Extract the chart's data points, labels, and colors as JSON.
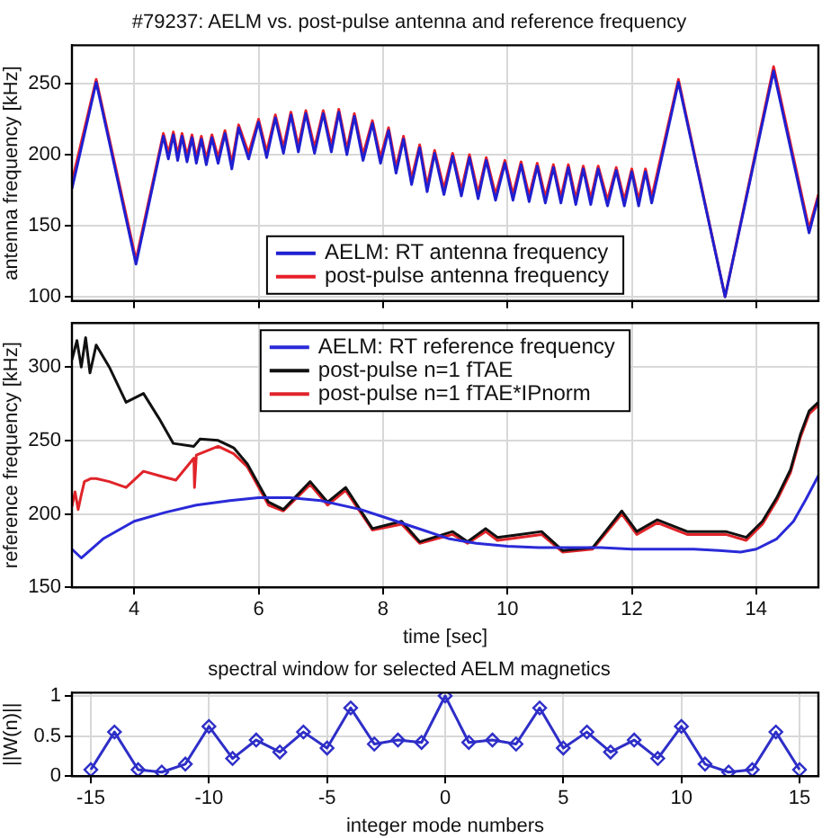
{
  "chart_data": [
    {
      "type": "line",
      "title": "#79237: AELM vs. post-pulse antenna and reference frequency",
      "ylabel": "antenna frequency [kHz]",
      "xlim": [
        3,
        15
      ],
      "xticks": [
        4,
        6,
        8,
        10,
        12,
        14
      ],
      "ylim": [
        97,
        277
      ],
      "yticks": [
        100,
        150,
        200,
        250
      ],
      "tick_labels": "y",
      "grid": true,
      "legend": "bottom",
      "x": [
        3.0,
        3.39,
        4.03,
        4.47,
        4.55,
        4.63,
        4.7,
        4.77,
        4.85,
        4.93,
        5.0,
        5.08,
        5.16,
        5.25,
        5.35,
        5.46,
        5.57,
        5.68,
        5.84,
        6.0,
        6.13,
        6.27,
        6.4,
        6.52,
        6.64,
        6.76,
        6.9,
        7.04,
        7.17,
        7.29,
        7.42,
        7.54,
        7.68,
        7.83,
        7.96,
        8.09,
        8.21,
        8.33,
        8.46,
        8.59,
        8.71,
        8.83,
        8.98,
        9.12,
        9.26,
        9.39,
        9.53,
        9.66,
        9.81,
        9.96,
        10.09,
        10.22,
        10.35,
        10.48,
        10.61,
        10.74,
        10.86,
        10.98,
        11.1,
        11.22,
        11.34,
        11.46,
        11.61,
        11.75,
        11.88,
        12.0,
        12.11,
        12.22,
        12.32,
        12.75,
        13.5,
        14.28,
        14.85,
        15.0
      ],
      "series": [
        {
          "name": "AELM: RT antenna frequency",
          "color": "#1f1fd0",
          "values": [
            176,
            251,
            123,
            213,
            197,
            214,
            196,
            213,
            195,
            212,
            194,
            211,
            193,
            212,
            194,
            215,
            190,
            219,
            197,
            223,
            198,
            226,
            201,
            228,
            202,
            229,
            201,
            229,
            202,
            230,
            200,
            227,
            196,
            222,
            194,
            217,
            187,
            211,
            179,
            205,
            174,
            201,
            172,
            199,
            171,
            198,
            169,
            196,
            168,
            194,
            168,
            193,
            167,
            192,
            166,
            191,
            166,
            191,
            165,
            190,
            165,
            190,
            164,
            189,
            164,
            188,
            164,
            188,
            166,
            251,
            100,
            259,
            145,
            170
          ]
        },
        {
          "name": "post-pulse antenna frequency",
          "color": "#e8202a",
          "values": [
            181,
            253,
            126,
            215,
            201,
            216,
            200,
            215,
            199,
            214,
            198,
            213,
            197,
            214,
            198,
            217,
            194,
            221,
            201,
            225,
            202,
            228,
            205,
            230,
            206,
            231,
            205,
            231,
            206,
            232,
            204,
            229,
            200,
            224,
            198,
            219,
            191,
            213,
            183,
            207,
            178,
            203,
            176,
            201,
            175,
            200,
            173,
            198,
            172,
            196,
            172,
            195,
            171,
            194,
            170,
            193,
            170,
            193,
            169,
            192,
            169,
            192,
            168,
            191,
            168,
            190,
            168,
            190,
            170,
            253,
            100,
            262,
            148,
            172
          ]
        }
      ]
    },
    {
      "type": "line",
      "xlabel": "time [sec]",
      "ylabel": "reference frequency [kHz]",
      "xlim": [
        3,
        15
      ],
      "xticks": [
        4,
        6,
        8,
        10,
        12,
        14
      ],
      "ylim": [
        150,
        330
      ],
      "yticks": [
        150,
        200,
        250,
        300
      ],
      "grid": true,
      "legend": "top",
      "series": [
        {
          "name": "AELM: RT reference frequency",
          "color": "#2a2ad8",
          "x": [
            3.0,
            3.15,
            3.5,
            4.0,
            4.5,
            5.0,
            5.54,
            6.0,
            6.5,
            7.0,
            7.64,
            8.0,
            8.5,
            9.07,
            9.5,
            10.0,
            10.5,
            11.0,
            11.5,
            12.0,
            12.4,
            13.0,
            13.4,
            13.75,
            14.0,
            14.33,
            14.6,
            14.8,
            15.0
          ],
          "values": [
            176,
            170,
            183,
            195,
            201,
            206,
            209,
            211,
            211,
            209,
            203,
            198,
            191,
            183,
            180,
            178,
            177,
            177,
            177,
            176,
            176,
            176,
            175,
            174,
            176,
            183,
            195,
            210,
            226
          ]
        },
        {
          "name": "post-pulse n=1 fTAE",
          "color": "#111111",
          "x": [
            3.0,
            3.08,
            3.15,
            3.22,
            3.29,
            3.39,
            3.6,
            3.87,
            4.15,
            4.4,
            4.63,
            4.96,
            5.06,
            5.35,
            5.6,
            5.82,
            6.16,
            6.4,
            6.83,
            7.11,
            7.4,
            7.83,
            8.3,
            8.59,
            9.12,
            9.36,
            9.65,
            9.84,
            10.2,
            10.55,
            10.89,
            11.37,
            11.84,
            12.08,
            12.41,
            12.89,
            13.51,
            13.84,
            14.1,
            14.33,
            14.55,
            14.71,
            14.85,
            15.0
          ],
          "values": [
            305,
            318,
            300,
            320,
            296,
            315,
            300,
            276,
            282,
            265,
            248,
            246,
            251,
            250,
            245,
            234,
            208,
            203,
            222,
            208,
            218,
            190,
            195,
            181,
            188,
            181,
            190,
            184,
            186,
            188,
            175,
            177,
            202,
            188,
            196,
            188,
            188,
            184,
            195,
            211,
            230,
            254,
            270,
            276
          ]
        },
        {
          "name": "post-pulse n=1 fTAE*IPnorm",
          "color": "#e0242a",
          "x": [
            3.0,
            3.05,
            3.1,
            3.15,
            3.2,
            3.3,
            3.39,
            3.6,
            3.87,
            4.15,
            4.4,
            4.67,
            4.96,
            4.97,
            5.0,
            5.35,
            5.6,
            5.82,
            6.16,
            6.4,
            6.83,
            7.11,
            7.4,
            7.83,
            8.3,
            8.59,
            9.12,
            9.36,
            9.65,
            9.84,
            10.2,
            10.55,
            10.89,
            11.37,
            11.84,
            12.08,
            12.41,
            12.89,
            13.51,
            13.84,
            14.1,
            14.33,
            14.55,
            14.71,
            14.85,
            15.0
          ],
          "values": [
            205,
            215,
            203,
            213,
            222,
            224,
            224,
            222,
            218,
            229,
            226,
            223,
            238,
            218,
            240,
            246,
            241,
            232,
            206,
            202,
            220,
            206,
            216,
            189,
            193,
            180,
            186,
            180,
            188,
            182,
            184,
            186,
            174,
            176,
            200,
            186,
            194,
            186,
            186,
            182,
            193,
            209,
            228,
            252,
            268,
            274
          ]
        }
      ]
    },
    {
      "type": "line",
      "title": "spectral window for selected AELM magnetics",
      "xlabel": "integer mode numbers",
      "ylabel": "||W(n)||",
      "xlim": [
        -15.8,
        15.8
      ],
      "xticks": [
        -15,
        -10,
        -5,
        0,
        5,
        10,
        15
      ],
      "ylim": [
        0,
        1.04
      ],
      "yticks": [
        0,
        0.5,
        1
      ],
      "grid": true,
      "marker": "diamond",
      "x": [
        -15,
        -14,
        -13,
        -12,
        -11,
        -10,
        -9,
        -8,
        -7,
        -6,
        -5,
        -4,
        -3,
        -2,
        -1,
        0,
        1,
        2,
        3,
        4,
        5,
        6,
        7,
        8,
        9,
        10,
        11,
        12,
        13,
        14,
        15
      ],
      "series": [
        {
          "color": "#2e2ec8",
          "values": [
            0.08,
            0.55,
            0.08,
            0.05,
            0.15,
            0.62,
            0.22,
            0.45,
            0.3,
            0.55,
            0.35,
            0.85,
            0.4,
            0.45,
            0.42,
            1.0,
            0.42,
            0.45,
            0.4,
            0.85,
            0.35,
            0.55,
            0.3,
            0.45,
            0.22,
            0.62,
            0.15,
            0.05,
            0.08,
            0.55,
            0.08
          ]
        }
      ]
    }
  ]
}
